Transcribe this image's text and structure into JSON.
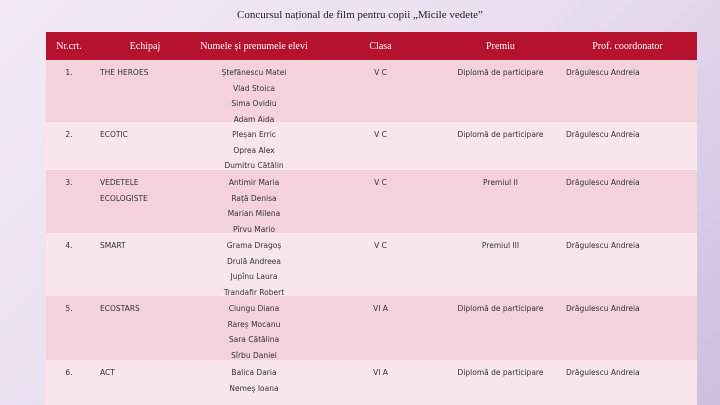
{
  "title": "Concursul național de film pentru copii „Micile vedete”",
  "table": {
    "header": [
      "Nr.crt.",
      "Echipaj",
      "Numele și prenumele elevi",
      "Clasa",
      "Premiu",
      "Prof. coordonator"
    ],
    "rows": [
      {
        "nr": "1.",
        "team": [
          "THE HEROES"
        ],
        "students": [
          "Ștefănescu Matei",
          "Vlad Stoica",
          "Sima Ovidiu",
          "Adam Aida"
        ],
        "class": "V C",
        "prize": "Diplomă de participare",
        "teacher": "Drăgulescu Andreia"
      },
      {
        "nr": "2.",
        "team": [
          "ECOTIC"
        ],
        "students": [
          "Pleșan Erric",
          "Oprea Alex",
          "Dumitru Cătălin"
        ],
        "class": "V C",
        "prize": "Diplomă de participare",
        "teacher": "Drăgulescu Andreia"
      },
      {
        "nr": "3.",
        "team": [
          "VEDETELE",
          "ECOLOGISTE"
        ],
        "students": [
          "Antimir Maria",
          "Rață Denisa",
          "Marian Milena",
          "Pîrvu Mario"
        ],
        "class": "V C",
        "prize": "Premiul II",
        "teacher": "Drăgulescu Andreia"
      },
      {
        "nr": "4.",
        "team": [
          "SMART"
        ],
        "students": [
          "Grama Dragoș",
          "Drulă Andreea",
          "Jupînu Laura",
          "Trandafir Robert"
        ],
        "class": "V C",
        "prize": "Premiul III",
        "teacher": "Drăgulescu Andreia"
      },
      {
        "nr": "5.",
        "team": [
          "ECOSTARS"
        ],
        "students": [
          "Ciungu Diana",
          "Rareș Mocanu",
          "Sara Cătălina",
          "Sîrbu Daniel"
        ],
        "class": "VI A",
        "prize": "Diplomă de participare",
        "teacher": "Drăgulescu Andreia"
      },
      {
        "nr": "6.",
        "team": [
          "ACT"
        ],
        "students": [
          "Balica Daria",
          "Nemeș Ioana"
        ],
        "class": "VI A",
        "prize": "Diplomă de participare",
        "teacher": "Drăgulescu Andreia"
      }
    ]
  }
}
